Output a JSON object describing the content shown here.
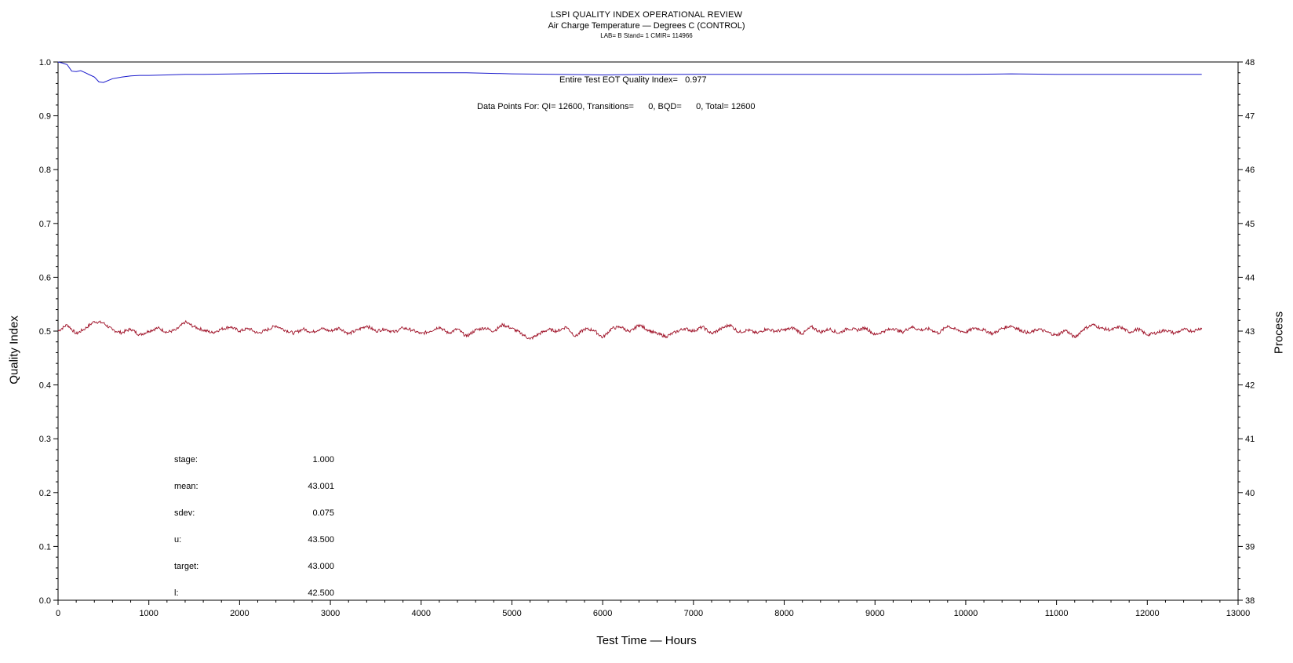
{
  "header": {
    "title": "LSPI QUALITY INDEX OPERATIONAL REVIEW",
    "subtitle": "Air Charge Temperature — Degrees C (CONTROL)",
    "meta": "LAB= B Stand= 1 CMIR= 114966"
  },
  "annotations": {
    "eot_quality": "Entire Test EOT Quality Index=   0.977",
    "data_points": "Data Points For: QI= 12600, Transitions=      0, BQD=      0, Total= 12600"
  },
  "stats": [
    {
      "label": "stage:",
      "value": "1.000"
    },
    {
      "label": "mean:",
      "value": "43.001"
    },
    {
      "label": "sdev:",
      "value": "0.075"
    },
    {
      "label": "u:",
      "value": "43.500"
    },
    {
      "label": "target:",
      "value": "43.000"
    },
    {
      "label": "l:",
      "value": "42.500"
    }
  ],
  "colors": {
    "quality_index": "#1a1acc",
    "process": "#a0142a",
    "axis": "#000000"
  },
  "chart_data": {
    "type": "line",
    "xlabel": "Test Time — Hours",
    "ylabel": "Quality Index",
    "ylabel_right": "Process",
    "xlim": [
      0,
      13000
    ],
    "ylim": [
      0.0,
      1.0
    ],
    "ylim_right": [
      38,
      48
    ],
    "x_ticks": [
      "0",
      "1000",
      "2000",
      "3000",
      "4000",
      "5000",
      "6000",
      "7000",
      "8000",
      "9000",
      "10000",
      "11000",
      "12000",
      "13000"
    ],
    "y_ticks": [
      "0.0",
      "0.1",
      "0.2",
      "0.3",
      "0.4",
      "0.5",
      "0.6",
      "0.7",
      "0.8",
      "0.9",
      "1.0"
    ],
    "y_ticks_right": [
      "38",
      "39",
      "40",
      "41",
      "42",
      "43",
      "44",
      "45",
      "46",
      "47",
      "48"
    ],
    "series": [
      {
        "axis": "left",
        "x": [
          0,
          50,
          100,
          150,
          200,
          250,
          300,
          350,
          400,
          450,
          500,
          600,
          700,
          800,
          900,
          1000,
          1200,
          1400,
          1600,
          2000,
          2500,
          3000,
          3500,
          4000,
          4500,
          5000,
          5500,
          6000,
          6500,
          7000,
          7500,
          8000,
          9000,
          10000,
          10500,
          11000,
          12000,
          12600
        ],
        "values": [
          1.0,
          0.998,
          0.995,
          0.983,
          0.982,
          0.984,
          0.98,
          0.976,
          0.972,
          0.963,
          0.962,
          0.969,
          0.972,
          0.974,
          0.975,
          0.975,
          0.976,
          0.977,
          0.977,
          0.978,
          0.979,
          0.979,
          0.98,
          0.98,
          0.98,
          0.978,
          0.977,
          0.976,
          0.977,
          0.977,
          0.977,
          0.977,
          0.977,
          0.977,
          0.978,
          0.977,
          0.977,
          0.977
        ]
      },
      {
        "axis": "right",
        "x": [
          0,
          100,
          200,
          300,
          400,
          500,
          600,
          700,
          800,
          900,
          1000,
          1100,
          1200,
          1300,
          1400,
          1500,
          1600,
          1700,
          1800,
          1900,
          2000,
          2100,
          2200,
          2300,
          2400,
          2500,
          2600,
          2700,
          2800,
          2900,
          3000,
          3100,
          3200,
          3300,
          3400,
          3500,
          3600,
          3700,
          3800,
          3900,
          4000,
          4100,
          4200,
          4300,
          4400,
          4500,
          4600,
          4700,
          4800,
          4900,
          5000,
          5100,
          5200,
          5300,
          5400,
          5500,
          5600,
          5700,
          5800,
          5900,
          6000,
          6100,
          6200,
          6300,
          6400,
          6500,
          6600,
          6700,
          6800,
          6900,
          7000,
          7100,
          7200,
          7300,
          7400,
          7500,
          7600,
          7700,
          7800,
          7900,
          8000,
          8100,
          8200,
          8300,
          8400,
          8500,
          8600,
          8700,
          8800,
          8900,
          9000,
          9100,
          9200,
          9300,
          9400,
          9500,
          9600,
          9700,
          9800,
          9900,
          10000,
          10100,
          10200,
          10300,
          10400,
          10500,
          10600,
          10700,
          10800,
          10900,
          11000,
          11100,
          11200,
          11300,
          11400,
          11500,
          11600,
          11700,
          11800,
          11900,
          12000,
          12100,
          12200,
          12300,
          12400,
          12500,
          12600
        ],
        "values": [
          43.0,
          43.12,
          42.95,
          43.05,
          43.18,
          43.15,
          43.02,
          42.97,
          43.04,
          42.93,
          43.0,
          43.06,
          42.98,
          43.02,
          43.17,
          43.08,
          43.02,
          42.97,
          43.04,
          43.08,
          43.0,
          43.05,
          42.96,
          43.02,
          43.1,
          43.02,
          42.96,
          43.04,
          42.98,
          43.05,
          43.0,
          43.06,
          42.95,
          43.02,
          43.1,
          43.0,
          43.04,
          42.98,
          43.06,
          43.02,
          42.95,
          43.0,
          43.08,
          42.96,
          43.04,
          42.9,
          43.02,
          43.06,
          43.0,
          43.12,
          43.05,
          42.96,
          42.85,
          42.95,
          43.03,
          43.0,
          43.08,
          42.9,
          43.04,
          43.02,
          42.88,
          43.05,
          43.08,
          42.98,
          43.12,
          43.02,
          42.95,
          42.9,
          42.98,
          43.05,
          43.0,
          43.08,
          42.95,
          43.04,
          43.12,
          42.98,
          43.02,
          42.96,
          43.04,
          43.0,
          43.02,
          43.06,
          42.95,
          43.08,
          42.98,
          43.04,
          42.96,
          43.05,
          43.02,
          43.06,
          42.93,
          43.0,
          43.05,
          42.98,
          43.08,
          43.02,
          43.04,
          42.96,
          43.1,
          43.02,
          42.98,
          43.06,
          43.02,
          42.95,
          43.05,
          43.1,
          43.02,
          42.96,
          43.04,
          42.98,
          42.92,
          43.02,
          42.88,
          43.04,
          43.12,
          43.05,
          43.02,
          43.08,
          42.98,
          43.04,
          42.93,
          42.97,
          43.02,
          42.96,
          43.03,
          43.0,
          43.06
        ]
      }
    ]
  }
}
